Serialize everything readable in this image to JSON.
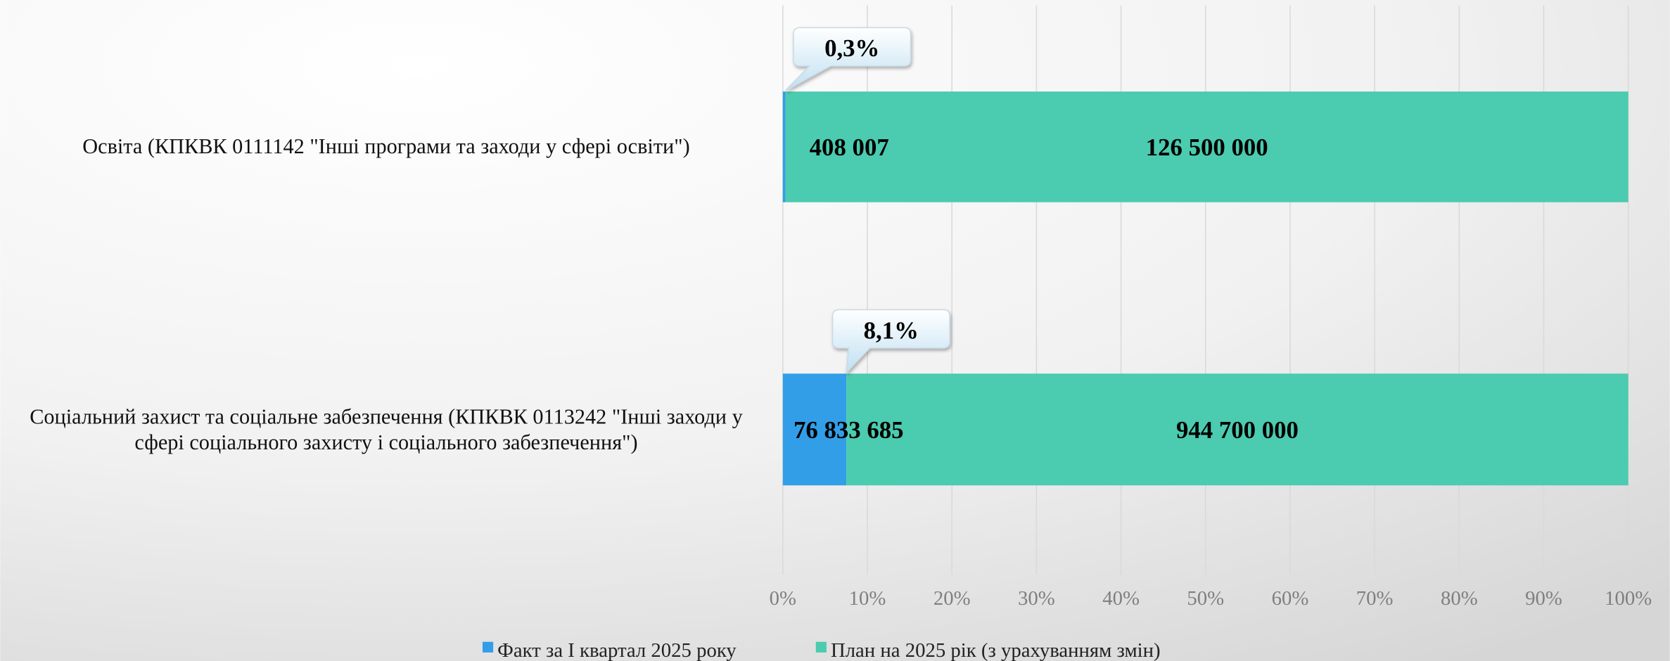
{
  "chart_data": {
    "type": "stacked_bar_percent",
    "orientation": "horizontal",
    "categories": [
      "Освіта (КПКВК 0111142 \"Інші програми та заходи у сфері освіти\")",
      "Соціальний захист та соціальне забезпечення (КПКВК 0113242 \"Інші заходи у сфері соціального захисту і соціального забезпечення\")"
    ],
    "series": [
      {
        "name": "Факт за І квартал 2025 року",
        "color": "#329ee8",
        "values": [
          408007,
          76833685
        ],
        "value_labels": [
          "408 007",
          "76 833 685"
        ]
      },
      {
        "name": "План на 2025 рік (з урахуванням змін)",
        "color": "#4bcbaf",
        "values": [
          126500000,
          944700000
        ],
        "value_labels": [
          "126 500 000",
          "944 700 000"
        ]
      }
    ],
    "callouts": [
      {
        "value": 0.3,
        "label": "0,3%"
      },
      {
        "value": 8.1,
        "label": "8,1%"
      }
    ],
    "xlim": [
      0,
      100
    ],
    "xticks": [
      {
        "value": 0,
        "label": "0%"
      },
      {
        "value": 10,
        "label": "10%"
      },
      {
        "value": 20,
        "label": "20%"
      },
      {
        "value": 30,
        "label": "30%"
      },
      {
        "value": 40,
        "label": "40%"
      },
      {
        "value": 50,
        "label": "50%"
      },
      {
        "value": 60,
        "label": "60%"
      },
      {
        "value": 70,
        "label": "70%"
      },
      {
        "value": 80,
        "label": "80%"
      },
      {
        "value": 90,
        "label": "90%"
      },
      {
        "value": 100,
        "label": "100%"
      }
    ],
    "grid": true,
    "legend": "bottom"
  }
}
